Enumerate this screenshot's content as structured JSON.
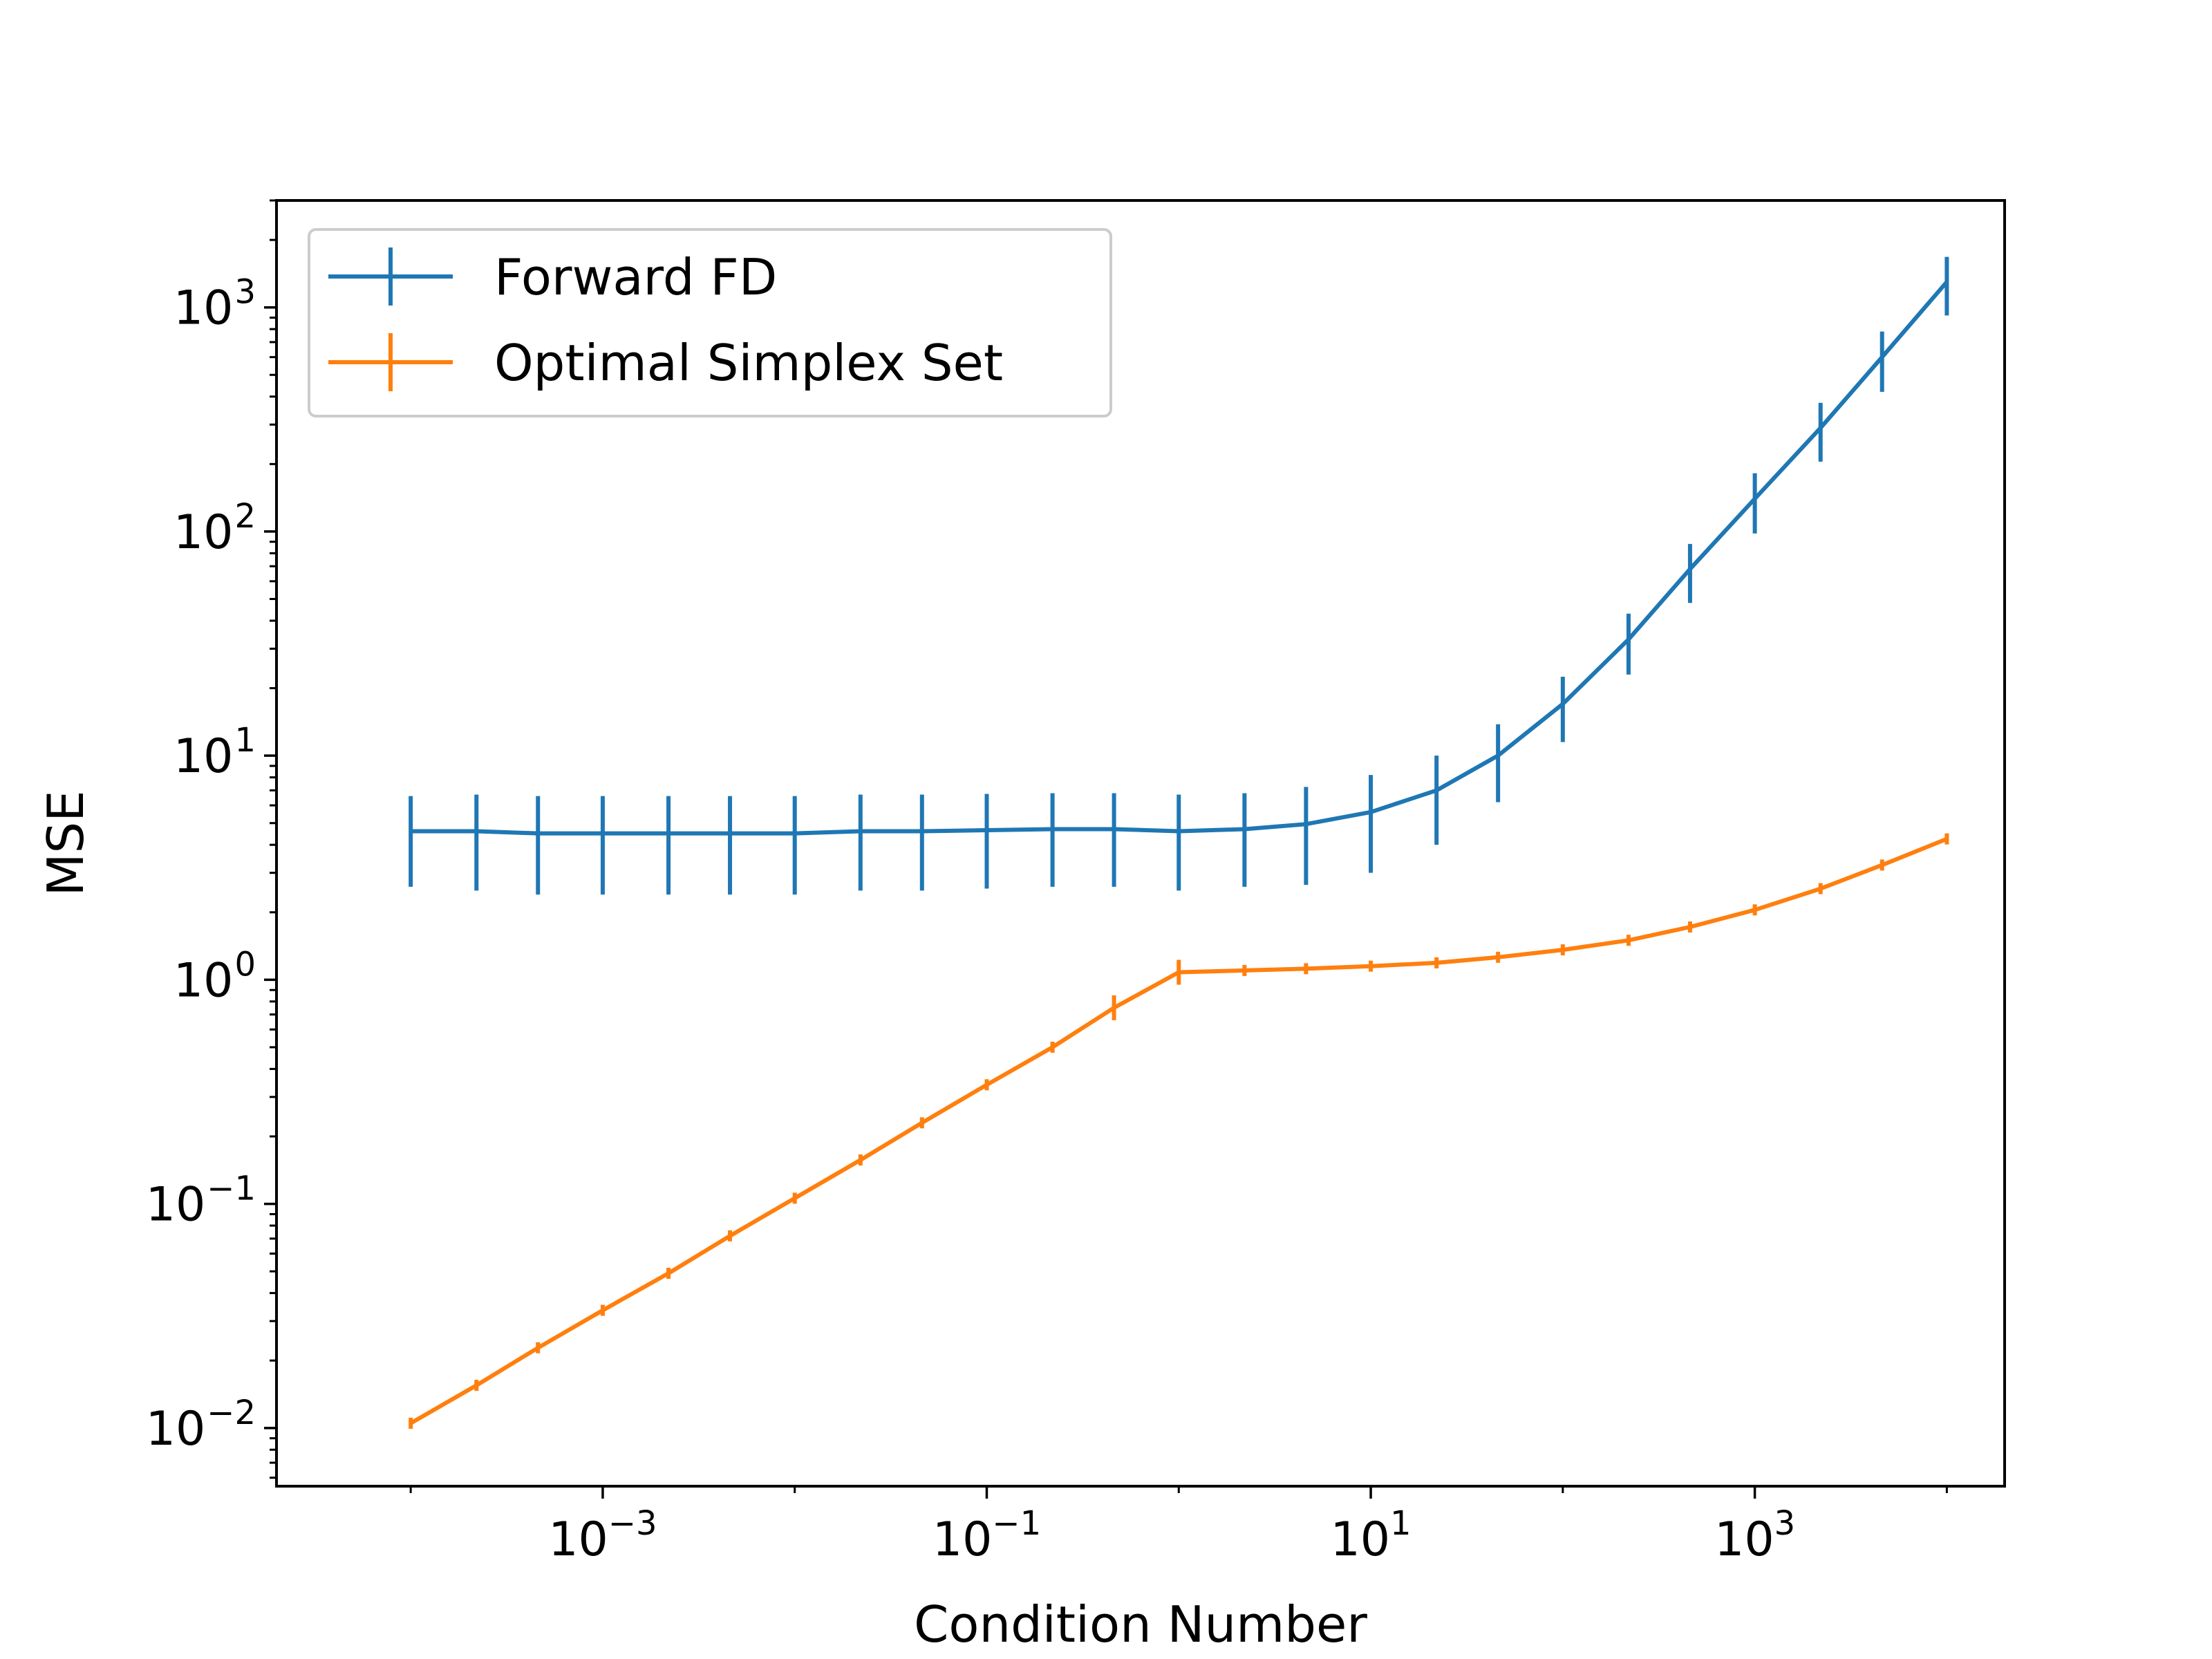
{
  "chart_data": {
    "type": "line",
    "title": "",
    "xlabel": "Condition Number",
    "ylabel": "MSE",
    "x_scale": "log",
    "y_scale": "log",
    "xlim": [
      2e-05,
      20000
    ],
    "ylim": [
      0.0055,
      3000
    ],
    "grid": false,
    "legend_position": "upper-left",
    "x_ticks": [
      {
        "value": 0.001,
        "base": "10",
        "exp": "−3"
      },
      {
        "value": 0.1,
        "base": "10",
        "exp": "−1"
      },
      {
        "value": 10,
        "base": "10",
        "exp": "1"
      },
      {
        "value": 1000,
        "base": "10",
        "exp": "3"
      }
    ],
    "y_ticks": [
      {
        "value": 0.01,
        "base": "10",
        "exp": "−2"
      },
      {
        "value": 0.1,
        "base": "10",
        "exp": "−1"
      },
      {
        "value": 1,
        "base": "10",
        "exp": "0"
      },
      {
        "value": 10,
        "base": "10",
        "exp": "1"
      },
      {
        "value": 100,
        "base": "10",
        "exp": "2"
      },
      {
        "value": 1000,
        "base": "10",
        "exp": "3"
      }
    ],
    "x": [
      0.0001,
      0.00022,
      0.00046,
      0.001,
      0.0022,
      0.0046,
      0.01,
      0.022,
      0.046,
      0.1,
      0.22,
      0.46,
      1,
      2.2,
      4.6,
      10,
      22,
      46,
      100,
      220,
      460,
      1000,
      2200,
      4600,
      10000
    ],
    "series": [
      {
        "name": "Forward FD",
        "color": "#1f77b4",
        "values": [
          4.6,
          4.6,
          4.5,
          4.5,
          4.5,
          4.5,
          4.5,
          4.6,
          4.6,
          4.65,
          4.7,
          4.7,
          4.6,
          4.7,
          4.95,
          5.6,
          7.0,
          10.0,
          17.0,
          33.0,
          68.0,
          140.0,
          290.0,
          600.0,
          1300.0
        ],
        "errors": [
          2.0,
          2.1,
          2.1,
          2.1,
          2.1,
          2.1,
          2.1,
          2.1,
          2.1,
          2.1,
          2.1,
          2.1,
          2.1,
          2.1,
          2.3,
          2.6,
          3.0,
          3.8,
          5.5,
          10.0,
          20.0,
          42.0,
          85.0,
          180.0,
          380.0
        ]
      },
      {
        "name": "Optimal Simplex Set",
        "color": "#ff7f0e",
        "values": [
          0.0105,
          0.0155,
          0.0228,
          0.0335,
          0.049,
          0.072,
          0.106,
          0.157,
          0.23,
          0.34,
          0.5,
          0.75,
          1.08,
          1.1,
          1.12,
          1.15,
          1.19,
          1.26,
          1.36,
          1.5,
          1.72,
          2.05,
          2.55,
          3.25,
          4.25
        ]
      }
    ]
  }
}
